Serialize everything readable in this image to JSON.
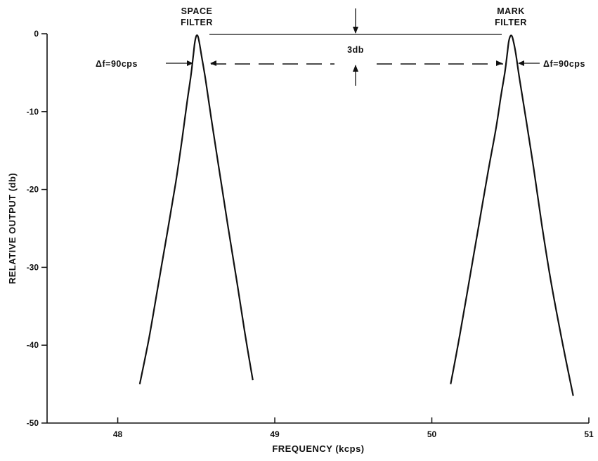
{
  "chart_data": {
    "type": "line",
    "title": "",
    "xlabel": "FREQUENCY (kcps)",
    "ylabel": "RELATIVE OUTPUT (db)",
    "xlim": [
      47.55,
      51.0
    ],
    "ylim": [
      -50,
      0
    ],
    "x_ticks": [
      48,
      49,
      50,
      51
    ],
    "x_tick_labels": [
      "48",
      "49",
      "50",
      "51"
    ],
    "y_ticks": [
      0,
      -10,
      -20,
      -30,
      -40,
      -50
    ],
    "y_tick_labels": [
      "0",
      "-10",
      "-20",
      "-30",
      "-40",
      "-50"
    ],
    "grid": false,
    "series": [
      {
        "name": "SPACE FILTER",
        "x": [
          48.14,
          48.2,
          48.26,
          48.32,
          48.37,
          48.41,
          48.44,
          48.465,
          48.48,
          48.49,
          48.5,
          48.51,
          48.52,
          48.535,
          48.56,
          48.6,
          48.65,
          48.7,
          48.76,
          48.81,
          48.86
        ],
        "y": [
          -45,
          -39,
          -32,
          -25,
          -19,
          -13.5,
          -9,
          -5.5,
          -3,
          -1.2,
          -0.3,
          -0.3,
          -1.2,
          -3,
          -6,
          -11.5,
          -18,
          -24.5,
          -32,
          -38.5,
          -44.5
        ]
      },
      {
        "name": "MARK FILTER",
        "x": [
          50.12,
          50.18,
          50.24,
          50.3,
          50.36,
          50.41,
          50.44,
          50.465,
          50.48,
          50.49,
          50.5,
          50.51,
          50.52,
          50.535,
          50.56,
          50.6,
          50.65,
          50.7,
          50.76,
          50.83,
          50.9
        ],
        "y": [
          -45,
          -38.5,
          -31.5,
          -24.5,
          -17.5,
          -12,
          -8,
          -5,
          -2.6,
          -1,
          -0.3,
          -0.3,
          -1,
          -2.6,
          -6,
          -11,
          -17.5,
          -24.5,
          -32,
          -39.5,
          -46.5
        ]
      }
    ],
    "annotations": {
      "space_label_line1": "SPACE",
      "space_label_line2": "FILTER",
      "mark_label_line1": "MARK",
      "mark_label_line2": "FILTER",
      "bandwidth_left": "Δf=90cps",
      "bandwidth_right": "Δf=90cps",
      "level_label": "3db"
    }
  }
}
